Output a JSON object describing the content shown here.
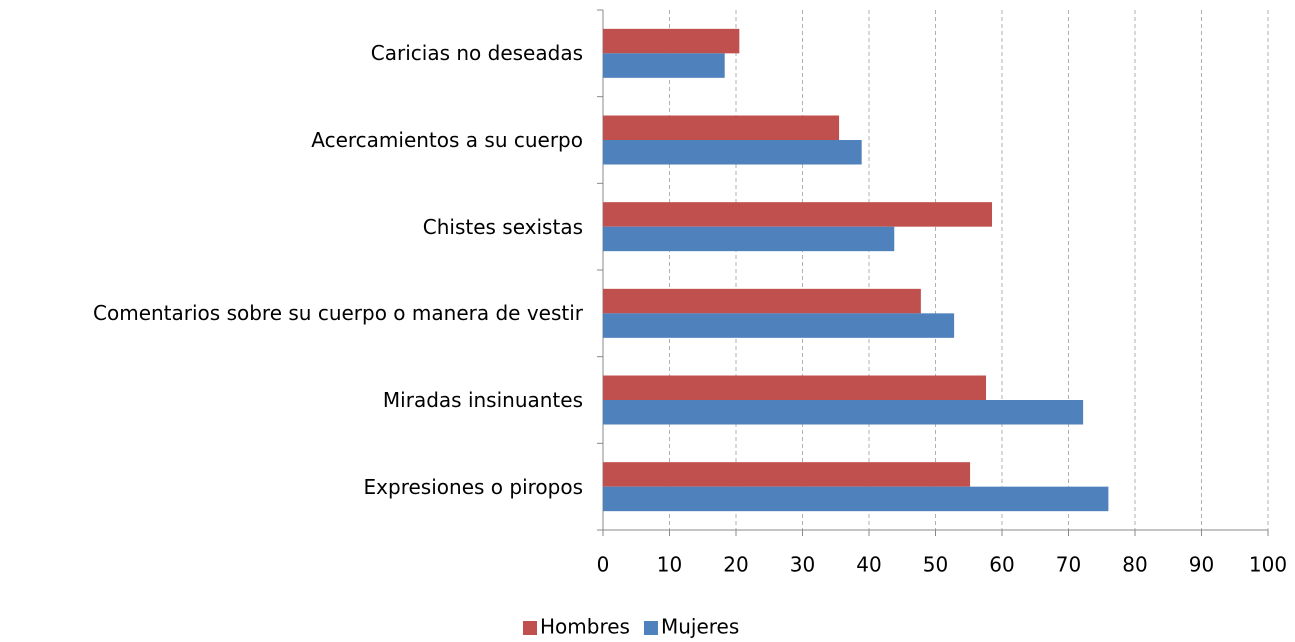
{
  "chart_data": {
    "type": "bar",
    "orientation": "horizontal",
    "categories": [
      "Caricias no deseadas",
      "Acercamientos a su cuerpo",
      "Chistes sexistas",
      "Comentarios sobre su cuerpo o manera de vestir",
      "Miradas insinuantes",
      "Expresiones o piropos"
    ],
    "series": [
      {
        "name": "Hombres",
        "color": "#c0504d",
        "values": [
          20.5,
          35.5,
          58.5,
          47.8,
          57.6,
          55.2
        ]
      },
      {
        "name": "Mujeres",
        "color": "#4f81bd",
        "values": [
          18.3,
          38.9,
          43.8,
          52.8,
          72.2,
          76
        ]
      }
    ],
    "xlim": [
      0,
      100
    ],
    "xticks": [
      0,
      10,
      20,
      30,
      40,
      50,
      60,
      70,
      80,
      90,
      100
    ],
    "grid": true,
    "legend": "bottom"
  }
}
